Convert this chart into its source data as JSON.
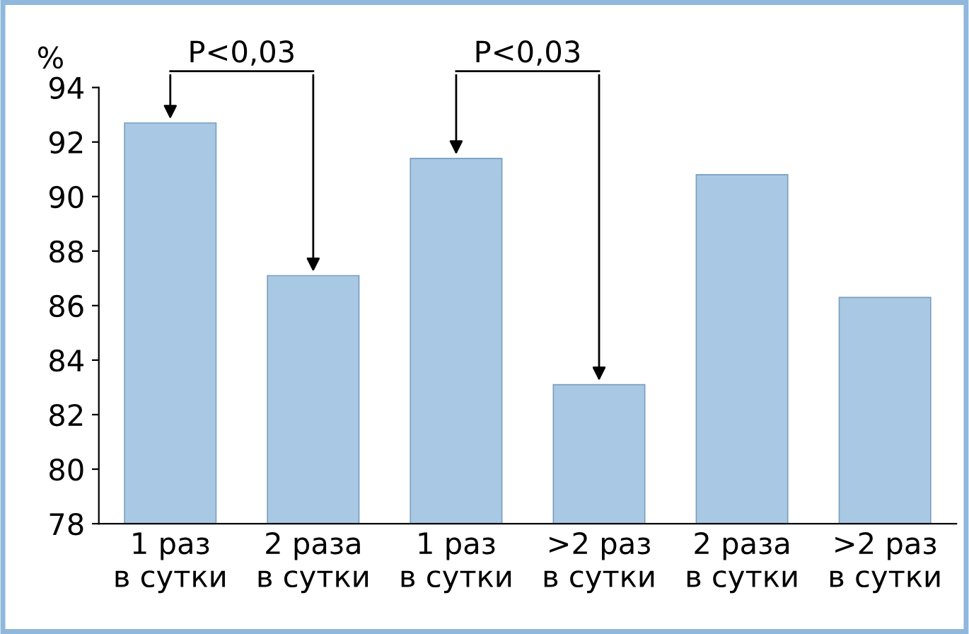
{
  "chart_data": {
    "type": "bar",
    "ylabel": "%",
    "categories": [
      "1 раз\nв сутки",
      "2 раза\nв сутки",
      "1 раз\nв сутки",
      ">2 раз\nв сутки",
      "2 раза\nв сутки",
      ">2 раз\nв сутки"
    ],
    "values": [
      92.7,
      87.1,
      91.4,
      83.1,
      90.8,
      86.3
    ],
    "color": "#a9c8e3",
    "ylim": [
      78,
      94
    ],
    "yticks": [
      78,
      80,
      82,
      84,
      86,
      88,
      90,
      92,
      94
    ],
    "grid": false,
    "annotations": [
      "P<0,03",
      "P<0,03"
    ]
  }
}
